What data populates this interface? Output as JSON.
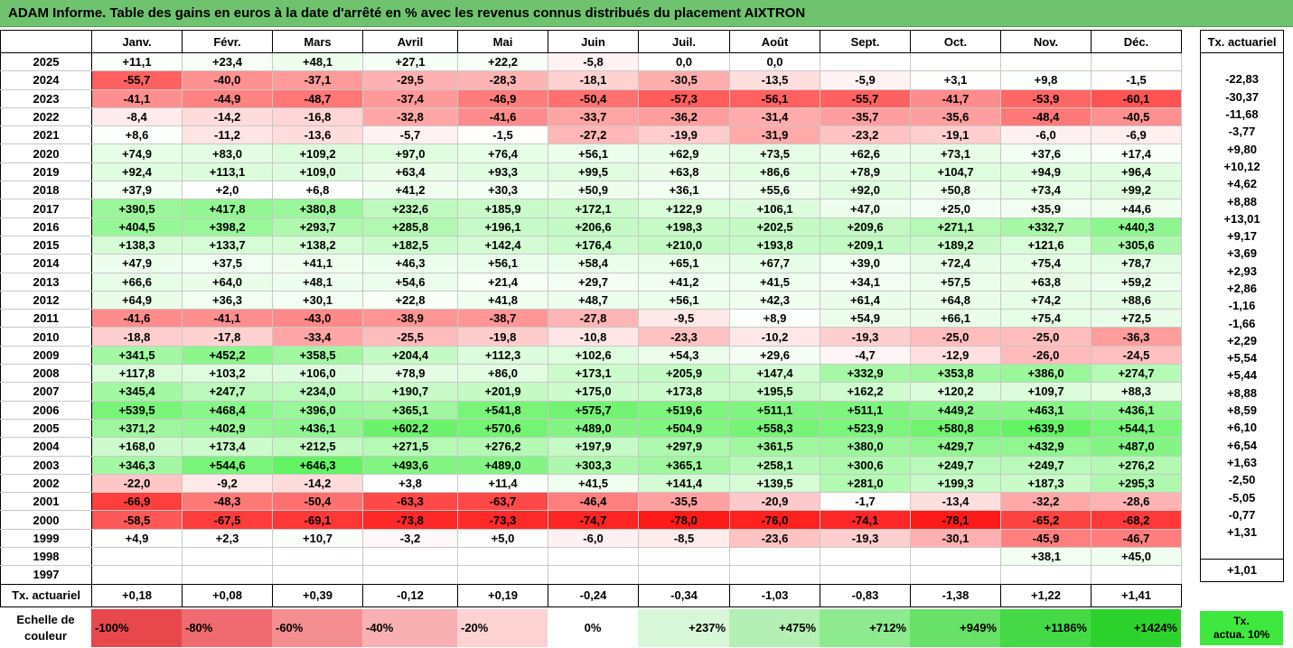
{
  "title": "ADAM Informe. Table des gains en euros à la date d'arrêté en % avec les revenus connus distribués du placement AIXTRON",
  "chart_data": {
    "type": "heatmap",
    "columns": [
      "Janv.",
      "Févr.",
      "Mars",
      "Avril",
      "Mai",
      "Juin",
      "Juil.",
      "Août",
      "Sept.",
      "Oct.",
      "Nov.",
      "Déc."
    ],
    "side_header": "Tx. actuariel",
    "row_label_foot": "Tx. actuariel",
    "rows": [
      {
        "year": "2025",
        "values": [
          "+11,1",
          "+23,4",
          "+48,1",
          "+27,1",
          "+22,2",
          "-5,8",
          "0,0",
          "0,0",
          "",
          "",
          "",
          ""
        ],
        "rate": ""
      },
      {
        "year": "2024",
        "values": [
          "-55,7",
          "-40,0",
          "-37,1",
          "-29,5",
          "-28,3",
          "-18,1",
          "-30,5",
          "-13,5",
          "-5,9",
          "+3,1",
          "+9,8",
          "-1,5"
        ],
        "rate": "-22,83"
      },
      {
        "year": "2023",
        "values": [
          "-41,1",
          "-44,9",
          "-48,7",
          "-37,4",
          "-46,9",
          "-50,4",
          "-57,3",
          "-56,1",
          "-55,7",
          "-41,7",
          "-53,9",
          "-60,1"
        ],
        "rate": "-30,37"
      },
      {
        "year": "2022",
        "values": [
          "-8,4",
          "-14,2",
          "-16,8",
          "-32,8",
          "-41,6",
          "-33,7",
          "-36,2",
          "-31,4",
          "-35,7",
          "-35,6",
          "-48,4",
          "-40,5"
        ],
        "rate": "-11,68"
      },
      {
        "year": "2021",
        "values": [
          "+8,6",
          "-11,2",
          "-13,6",
          "-5,7",
          "-1,5",
          "-27,2",
          "-19,9",
          "-31,9",
          "-23,2",
          "-19,1",
          "-6,0",
          "-6,9"
        ],
        "rate": "-3,77"
      },
      {
        "year": "2020",
        "values": [
          "+74,9",
          "+83,0",
          "+109,2",
          "+97,0",
          "+76,4",
          "+56,1",
          "+62,9",
          "+73,5",
          "+62,6",
          "+73,1",
          "+37,6",
          "+17,4"
        ],
        "rate": "+9,80"
      },
      {
        "year": "2019",
        "values": [
          "+92,4",
          "+113,1",
          "+109,0",
          "+63,4",
          "+93,3",
          "+99,5",
          "+63,8",
          "+86,6",
          "+78,9",
          "+104,7",
          "+94,9",
          "+96,4"
        ],
        "rate": "+10,12"
      },
      {
        "year": "2018",
        "values": [
          "+37,9",
          "+2,0",
          "+6,8",
          "+41,2",
          "+30,3",
          "+50,9",
          "+36,1",
          "+55,6",
          "+92,0",
          "+50,8",
          "+73,4",
          "+99,2"
        ],
        "rate": "+4,62"
      },
      {
        "year": "2017",
        "values": [
          "+390,5",
          "+417,8",
          "+380,8",
          "+232,6",
          "+185,9",
          "+172,1",
          "+122,9",
          "+106,1",
          "+47,0",
          "+25,0",
          "+35,9",
          "+44,6"
        ],
        "rate": "+8,88"
      },
      {
        "year": "2016",
        "values": [
          "+404,5",
          "+398,2",
          "+293,7",
          "+285,8",
          "+196,1",
          "+206,6",
          "+198,3",
          "+202,5",
          "+209,6",
          "+271,1",
          "+332,7",
          "+440,3"
        ],
        "rate": "+13,01"
      },
      {
        "year": "2015",
        "values": [
          "+138,3",
          "+133,7",
          "+138,2",
          "+182,5",
          "+142,4",
          "+176,4",
          "+210,0",
          "+193,8",
          "+209,1",
          "+189,2",
          "+121,6",
          "+305,6"
        ],
        "rate": "+9,17"
      },
      {
        "year": "2014",
        "values": [
          "+47,9",
          "+37,5",
          "+41,1",
          "+46,3",
          "+56,1",
          "+58,4",
          "+65,1",
          "+67,7",
          "+39,0",
          "+72,4",
          "+75,4",
          "+78,7"
        ],
        "rate": "+3,69"
      },
      {
        "year": "2013",
        "values": [
          "+66,6",
          "+64,0",
          "+48,1",
          "+54,6",
          "+21,4",
          "+29,7",
          "+41,2",
          "+41,5",
          "+34,1",
          "+57,5",
          "+63,8",
          "+59,2"
        ],
        "rate": "+2,93"
      },
      {
        "year": "2012",
        "values": [
          "+64,9",
          "+36,3",
          "+30,1",
          "+22,8",
          "+41,8",
          "+48,7",
          "+56,1",
          "+42,3",
          "+61,4",
          "+64,8",
          "+74,2",
          "+88,6"
        ],
        "rate": "+2,86"
      },
      {
        "year": "2011",
        "values": [
          "-41,6",
          "-41,1",
          "-43,0",
          "-38,9",
          "-38,7",
          "-27,8",
          "-9,5",
          "+8,9",
          "+54,9",
          "+66,1",
          "+75,4",
          "+72,5"
        ],
        "rate": "-1,16"
      },
      {
        "year": "2010",
        "values": [
          "-18,8",
          "-17,8",
          "-33,4",
          "-25,5",
          "-19,8",
          "-10,8",
          "-23,3",
          "-10,2",
          "-19,3",
          "-25,0",
          "-25,0",
          "-36,3"
        ],
        "rate": "-1,66"
      },
      {
        "year": "2009",
        "values": [
          "+341,5",
          "+452,2",
          "+358,5",
          "+204,4",
          "+112,3",
          "+102,6",
          "+54,3",
          "+29,6",
          "-4,7",
          "-12,9",
          "-26,0",
          "-24,5"
        ],
        "rate": "+2,29"
      },
      {
        "year": "2008",
        "values": [
          "+117,8",
          "+103,2",
          "+106,0",
          "+78,9",
          "+86,0",
          "+173,1",
          "+205,9",
          "+147,4",
          "+332,9",
          "+353,8",
          "+386,0",
          "+274,7"
        ],
        "rate": "+5,54"
      },
      {
        "year": "2007",
        "values": [
          "+345,4",
          "+247,7",
          "+234,0",
          "+190,7",
          "+201,9",
          "+175,0",
          "+173,8",
          "+195,5",
          "+162,2",
          "+120,2",
          "+109,7",
          "+88,3"
        ],
        "rate": "+5,44"
      },
      {
        "year": "2006",
        "values": [
          "+539,5",
          "+468,4",
          "+396,0",
          "+365,1",
          "+541,8",
          "+575,7",
          "+519,6",
          "+511,1",
          "+511,1",
          "+449,2",
          "+463,1",
          "+436,1"
        ],
        "rate": "+8,88"
      },
      {
        "year": "2005",
        "values": [
          "+371,2",
          "+402,9",
          "+436,1",
          "+602,2",
          "+570,6",
          "+489,0",
          "+504,9",
          "+558,3",
          "+523,9",
          "+580,8",
          "+639,9",
          "+544,1"
        ],
        "rate": "+8,59"
      },
      {
        "year": "2004",
        "values": [
          "+168,0",
          "+173,4",
          "+212,5",
          "+271,5",
          "+276,2",
          "+197,9",
          "+297,9",
          "+361,5",
          "+380,0",
          "+429,7",
          "+432,9",
          "+487,0"
        ],
        "rate": "+6,10"
      },
      {
        "year": "2003",
        "values": [
          "+346,3",
          "+544,6",
          "+646,3",
          "+493,6",
          "+489,0",
          "+303,3",
          "+365,1",
          "+258,1",
          "+300,6",
          "+249,7",
          "+249,7",
          "+276,2"
        ],
        "rate": "+6,54"
      },
      {
        "year": "2002",
        "values": [
          "-22,0",
          "-9,2",
          "-14,2",
          "+3,8",
          "+11,4",
          "+41,5",
          "+141,4",
          "+139,5",
          "+281,0",
          "+199,3",
          "+187,3",
          "+295,3"
        ],
        "rate": "+1,63"
      },
      {
        "year": "2001",
        "values": [
          "-66,9",
          "-48,3",
          "-50,4",
          "-63,3",
          "-63,7",
          "-46,4",
          "-35,5",
          "-20,9",
          "-1,7",
          "-13,4",
          "-32,2",
          "-28,6"
        ],
        "rate": "-2,50"
      },
      {
        "year": "2000",
        "values": [
          "-58,5",
          "-67,5",
          "-69,1",
          "-73,8",
          "-73,3",
          "-74,7",
          "-78,0",
          "-76,0",
          "-74,1",
          "-78,1",
          "-65,2",
          "-68,2"
        ],
        "rate": "-5,05"
      },
      {
        "year": "1999",
        "values": [
          "+4,9",
          "+2,3",
          "+10,7",
          "-3,2",
          "+5,0",
          "-6,0",
          "-8,5",
          "-23,6",
          "-19,3",
          "-30,1",
          "-45,9",
          "-46,7"
        ],
        "rate": "-0,77"
      },
      {
        "year": "1998",
        "values": [
          "",
          "",
          "",
          "",
          "",
          "",
          "",
          "",
          "",
          "",
          "+38,1",
          "+45,0"
        ],
        "rate": "+1,31"
      },
      {
        "year": "1997",
        "values": [
          "",
          "",
          "",
          "",
          "",
          "",
          "",
          "",
          "",
          "",
          "",
          ""
        ],
        "rate": ""
      }
    ],
    "foot_values": [
      "+0,18",
      "+0,08",
      "+0,39",
      "-0,12",
      "+0,19",
      "-0,24",
      "-0,34",
      "-1,03",
      "-0,83",
      "-1,38",
      "+1,22",
      "+1,41"
    ],
    "foot_rate": "+1,01",
    "scale": {
      "label_line1": "Echelle de",
      "label_line2": "couleur",
      "stops": [
        {
          "label": "-100%",
          "color": "#e8474c",
          "kind": "neg"
        },
        {
          "label": "-80%",
          "color": "#ef6b6f",
          "kind": "neg"
        },
        {
          "label": "-60%",
          "color": "#f58e91",
          "kind": "neg"
        },
        {
          "label": "-40%",
          "color": "#f9b0b2",
          "kind": "neg"
        },
        {
          "label": "-20%",
          "color": "#fcd2d3",
          "kind": "neg"
        },
        {
          "label": "0%",
          "color": "#ffffff",
          "kind": "zero"
        },
        {
          "label": "+237%",
          "color": "#d8f7d8",
          "kind": "pos"
        },
        {
          "label": "+475%",
          "color": "#b4f0b4",
          "kind": "pos"
        },
        {
          "label": "+712%",
          "color": "#8eea8e",
          "kind": "pos"
        },
        {
          "label": "+949%",
          "color": "#68e168",
          "kind": "pos"
        },
        {
          "label": "+1186%",
          "color": "#45da45",
          "kind": "pos"
        },
        {
          "label": "+1424%",
          "color": "#2dd32d",
          "kind": "pos"
        }
      ],
      "target_line1": "Tx.",
      "target_line2": "actua. 10%",
      "target_color": "#3ee83e"
    }
  }
}
